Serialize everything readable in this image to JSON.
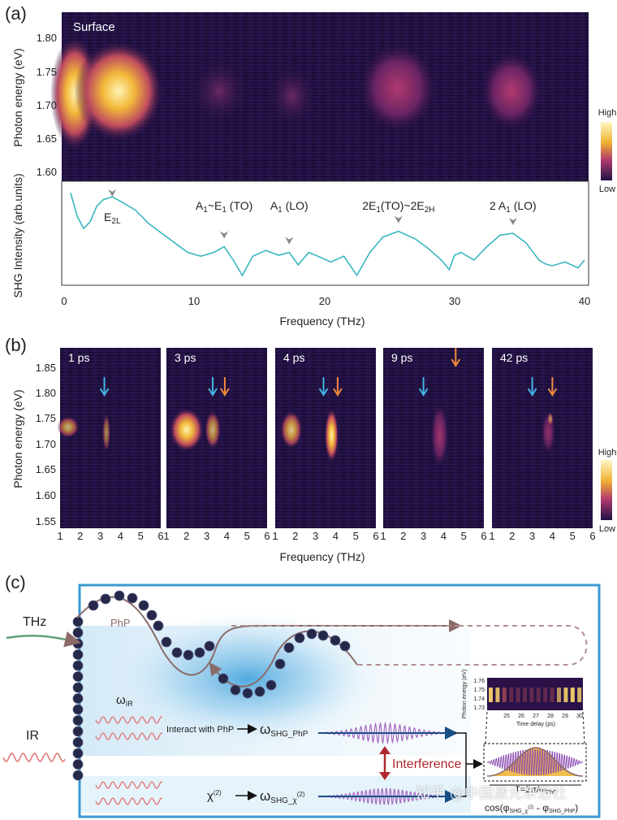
{
  "panel_a": {
    "label": "(a)",
    "heatmap_label": "Surface",
    "y_ticks": [
      "1.80",
      "1.75",
      "1.70",
      "1.65",
      "1.60"
    ],
    "y_label_top": "Photon energy (eV)",
    "y_label_bottom": "SHG Intensity (arb.units)",
    "x_ticks": [
      "0",
      "10",
      "20",
      "30",
      "40"
    ],
    "x_label": "Frequency (THz)",
    "colorbar_high": "High",
    "colorbar_low": "Low",
    "peaks": [
      {
        "main": "E",
        "sub": "2L",
        "tail": "",
        "freq": 3.7
      },
      {
        "main": "A",
        "sub": "1",
        "tail": "~E",
        "sub2": "1",
        "tail2": " (TO)",
        "freq": 12.3
      },
      {
        "main": "A",
        "sub": "1",
        "tail": " (LO)",
        "freq": 17.3
      },
      {
        "main": "2E",
        "sub": "1",
        "tail": "(TO)~2E",
        "sub2": "2H",
        "tail2": "",
        "freq": 25.7
      },
      {
        "main": "2 A",
        "sub": "1",
        "tail": " (LO)",
        "freq": 34.5
      }
    ]
  },
  "panel_b": {
    "label": "(b)",
    "y_ticks": [
      "1.85",
      "1.80",
      "1.75",
      "1.70",
      "1.65",
      "1.60",
      "1.55"
    ],
    "y_label": "Photon energy (eV)",
    "x_ticks": [
      "1",
      "2",
      "3",
      "4",
      "5",
      "6"
    ],
    "x_label": "Frequency (THz)",
    "colorbar_high": "High",
    "colorbar_low": "Low",
    "panels": [
      {
        "delay": "1 ps",
        "blue_arrow": 3.2,
        "orange_arrow": null
      },
      {
        "delay": "3 ps",
        "blue_arrow": 3.3,
        "orange_arrow": 3.9
      },
      {
        "delay": "4 ps",
        "blue_arrow": 3.4,
        "orange_arrow": 4.1
      },
      {
        "delay": "9 ps",
        "blue_arrow": 3.0,
        "orange_arrow": 4.6
      },
      {
        "delay": "42 ps",
        "blue_arrow": 3.0,
        "orange_arrow": 4.0
      }
    ]
  },
  "panel_c": {
    "label": "(c)",
    "thz": "THz",
    "ir": "IR",
    "php": "PhP",
    "omega_ir": "ω",
    "omega_ir_sub": "IR",
    "interact": "Interact with PhP",
    "omega_php": "ω",
    "omega_php_sub": "SHG_PhP",
    "chi": "χ",
    "chi_sup": "(2)",
    "omega_chi": "ω",
    "omega_chi_sub": "SHG_χ",
    "omega_chi_sup": "(2)",
    "interference": "Interference",
    "inset_ylabel": "Photon energy (eV)",
    "inset_yticks": [
      "1.76",
      "1.75",
      "1.74",
      "1.73"
    ],
    "inset_xticks": [
      "25",
      "26",
      "27",
      "28",
      "29",
      "30"
    ],
    "inset_xlabel": "Time delay (ps)",
    "period": "T=2π/ω",
    "period_sub": "PhP",
    "cos_formula": "cos(φ",
    "cos_sub1": "SHG_χ",
    "cos_sup1": "(2)",
    "cos_mid": " - φ",
    "cos_sub2": "SHG_PhP",
    "cos_end": ")"
  },
  "watermark": "知乎 @中国激光杂志社",
  "chart_data": [
    {
      "type": "heatmap",
      "title": "",
      "annotation": "Surface",
      "xlabel": "Frequency (THz)",
      "ylabel": "Photon energy (eV)",
      "xlim": [
        0,
        40
      ],
      "ylim": [
        1.58,
        1.84
      ],
      "colorbar": [
        "Low",
        "High"
      ],
      "hot_spots": [
        {
          "freq": 0.8,
          "energy": 1.725,
          "intensity": 1.0
        },
        {
          "freq": 4.2,
          "energy": 1.71,
          "intensity": 0.95
        },
        {
          "freq": 12.0,
          "energy": 1.72,
          "intensity": 0.25
        },
        {
          "freq": 17.5,
          "energy": 1.72,
          "intensity": 0.2
        },
        {
          "freq": 25.5,
          "energy": 1.725,
          "intensity": 0.55
        },
        {
          "freq": 34.5,
          "energy": 1.72,
          "intensity": 0.45
        }
      ]
    },
    {
      "type": "line",
      "title": "",
      "xlabel": "Frequency (THz)",
      "ylabel": "SHG Intensity (arb.units)",
      "xlim": [
        0,
        40
      ],
      "series": [
        {
          "x": [
            0.5,
            1.0,
            1.5,
            2.0,
            2.5,
            3.0,
            3.7,
            4.5,
            5.5,
            6.5,
            7.5,
            8.5,
            9.5,
            10.5,
            11.5,
            12.3,
            13.0,
            13.7,
            14.5,
            15.5,
            16.5,
            17.3,
            18.0,
            18.8,
            19.5,
            20.5,
            21.5,
            22.5,
            23.5,
            24.5,
            25.7,
            27.0,
            28.0,
            29.0,
            29.6,
            30.0,
            30.5,
            31.5,
            32.5,
            33.5,
            34.5,
            35.5,
            36.5,
            37.0,
            37.5,
            38.5,
            39.5,
            40.0
          ],
          "y": [
            0.92,
            0.68,
            0.55,
            0.62,
            0.78,
            0.85,
            0.88,
            0.82,
            0.74,
            0.6,
            0.5,
            0.4,
            0.3,
            0.26,
            0.3,
            0.36,
            0.22,
            0.06,
            0.26,
            0.32,
            0.27,
            0.3,
            0.17,
            0.3,
            0.26,
            0.2,
            0.26,
            0.06,
            0.3,
            0.46,
            0.52,
            0.44,
            0.34,
            0.22,
            0.12,
            0.27,
            0.3,
            0.22,
            0.36,
            0.48,
            0.5,
            0.4,
            0.22,
            0.18,
            0.16,
            0.2,
            0.14,
            0.22
          ]
        }
      ]
    },
    {
      "type": "heatmap",
      "title": "",
      "xlabel": "Frequency (THz)",
      "ylabel": "Photon energy (eV)",
      "xlim": [
        1,
        6
      ],
      "ylim": [
        1.55,
        1.88
      ],
      "panels": [
        "1 ps",
        "3 ps",
        "4 ps",
        "9 ps",
        "42 ps"
      ]
    }
  ]
}
